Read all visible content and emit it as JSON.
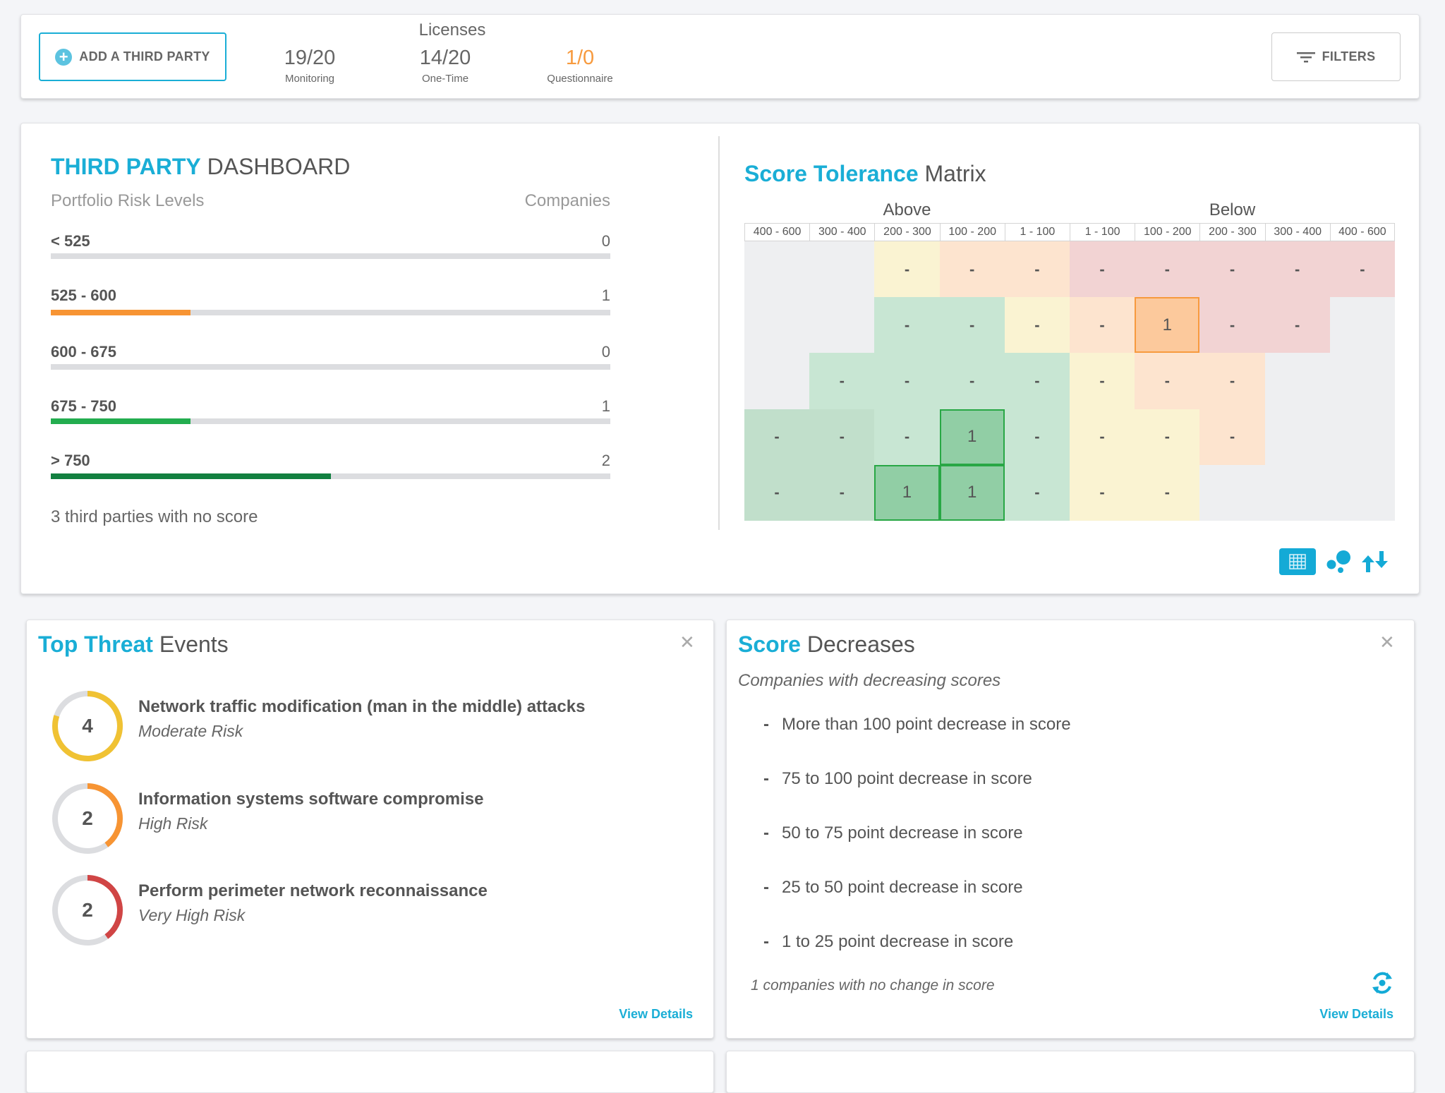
{
  "topbar": {
    "add_button_label": "ADD A THIRD PARTY",
    "licenses_label": "Licenses",
    "licenses": [
      {
        "value": "19/20",
        "label": "Monitoring",
        "color": "#666666"
      },
      {
        "value": "14/20",
        "label": "One-Time",
        "color": "#666666"
      },
      {
        "value": "1/0",
        "label": "Questionnaire",
        "color": "#f79a3e"
      }
    ],
    "filters_label": "FILTERS"
  },
  "dashboard": {
    "title_accent": "THIRD PARTY",
    "title_rest": " DASHBOARD",
    "levels_header": "Portfolio Risk Levels",
    "companies_header": "Companies",
    "levels": [
      {
        "label": "< 525",
        "count": "0",
        "fill": 0,
        "color": "#dcdde0"
      },
      {
        "label": "525 - 600",
        "count": "1",
        "fill": 0.25,
        "color": "#f79433"
      },
      {
        "label": "600 - 675",
        "count": "0",
        "fill": 0,
        "color": "#dcdde0"
      },
      {
        "label": "675 - 750",
        "count": "1",
        "fill": 0.25,
        "color": "#23ad4f"
      },
      {
        "label": "> 750",
        "count": "2",
        "fill": 0.5,
        "color": "#128040"
      }
    ],
    "no_score_text": "3 third parties with no score"
  },
  "matrix": {
    "title_accent": "Score Tolerance",
    "title_rest": " Matrix",
    "above_label": "Above",
    "below_label": "Below",
    "columns": [
      "400 - 600",
      "300 - 400",
      "200 - 300",
      "100 - 200",
      "1 - 100",
      "1 - 100",
      "100 - 200",
      "200 - 300",
      "300 - 400",
      "400 - 600"
    ],
    "colors": {
      "gray": "#eeeff1",
      "green": "#c8e6d3",
      "green2": "#c1dfcb",
      "yellow": "#faf3d2",
      "peach": "#fde4cf",
      "pink": "#f2d3d3",
      "hl_green": "#91cea5",
      "hl_green_border": "#28a745",
      "hl_orange": "#fcc99c",
      "hl_orange_border": "#f79a3e"
    },
    "rows": [
      [
        [
          "gray",
          ""
        ],
        [
          "gray",
          ""
        ],
        [
          "yellow",
          "-"
        ],
        [
          "peach",
          "-"
        ],
        [
          "peach",
          "-"
        ],
        [
          "pink",
          "-"
        ],
        [
          "pink",
          "-"
        ],
        [
          "pink",
          "-"
        ],
        [
          "pink",
          "-"
        ],
        [
          "pink",
          "-"
        ]
      ],
      [
        [
          "gray",
          ""
        ],
        [
          "gray",
          ""
        ],
        [
          "green",
          "-"
        ],
        [
          "green",
          "-"
        ],
        [
          "yellow",
          "-"
        ],
        [
          "peach",
          "-"
        ],
        [
          "hl_orange",
          "1"
        ],
        [
          "pink",
          "-"
        ],
        [
          "pink",
          "-"
        ],
        [
          "gray",
          ""
        ]
      ],
      [
        [
          "gray",
          ""
        ],
        [
          "green",
          "-"
        ],
        [
          "green",
          "-"
        ],
        [
          "green",
          "-"
        ],
        [
          "green",
          "-"
        ],
        [
          "yellow",
          "-"
        ],
        [
          "peach",
          "-"
        ],
        [
          "peach",
          "-"
        ],
        [
          "gray",
          ""
        ],
        [
          "gray",
          ""
        ]
      ],
      [
        [
          "green2",
          "-"
        ],
        [
          "green2",
          "-"
        ],
        [
          "green",
          "-"
        ],
        [
          "hl_green",
          "1"
        ],
        [
          "green",
          "-"
        ],
        [
          "yellow",
          "-"
        ],
        [
          "yellow",
          "-"
        ],
        [
          "peach",
          "-"
        ],
        [
          "gray",
          ""
        ],
        [
          "gray",
          ""
        ]
      ],
      [
        [
          "green2",
          "-"
        ],
        [
          "green2",
          "-"
        ],
        [
          "hl_green",
          "1"
        ],
        [
          "hl_green",
          "1"
        ],
        [
          "green",
          "-"
        ],
        [
          "yellow",
          "-"
        ],
        [
          "yellow",
          "-"
        ],
        [
          "gray",
          ""
        ],
        [
          "gray",
          ""
        ],
        [
          "gray",
          ""
        ]
      ]
    ],
    "view_icons": [
      "grid-icon",
      "bubble-icon",
      "sort-arrows-icon"
    ],
    "active_view": "grid-icon"
  },
  "threats": {
    "title_accent": "Top Threat",
    "title_rest": " Events",
    "items": [
      {
        "count": "4",
        "title": "Network traffic modification (man in the middle) attacks",
        "risk": "Moderate Risk",
        "fraction": 0.8,
        "color": "#f0c233"
      },
      {
        "count": "2",
        "title": "Information systems software compromise",
        "risk": "High Risk",
        "fraction": 0.4,
        "color": "#f79433"
      },
      {
        "count": "2",
        "title": "Perform perimeter network reconnaissance",
        "risk": "Very High Risk",
        "fraction": 0.4,
        "color": "#d04545"
      }
    ],
    "view_details": "View Details"
  },
  "decreases": {
    "title_accent": "Score",
    "title_rest": " Decreases",
    "subtitle": "Companies with decreasing scores",
    "items": [
      "More than 100 point decrease in score",
      "75 to 100 point decrease in score",
      "50 to 75 point decrease in score",
      "25 to 50 point decrease in score",
      "1 to 25 point decrease in score"
    ],
    "no_change_text": "1 companies with no change in score",
    "view_details": "View Details"
  },
  "accent_color": "#1aaed6"
}
